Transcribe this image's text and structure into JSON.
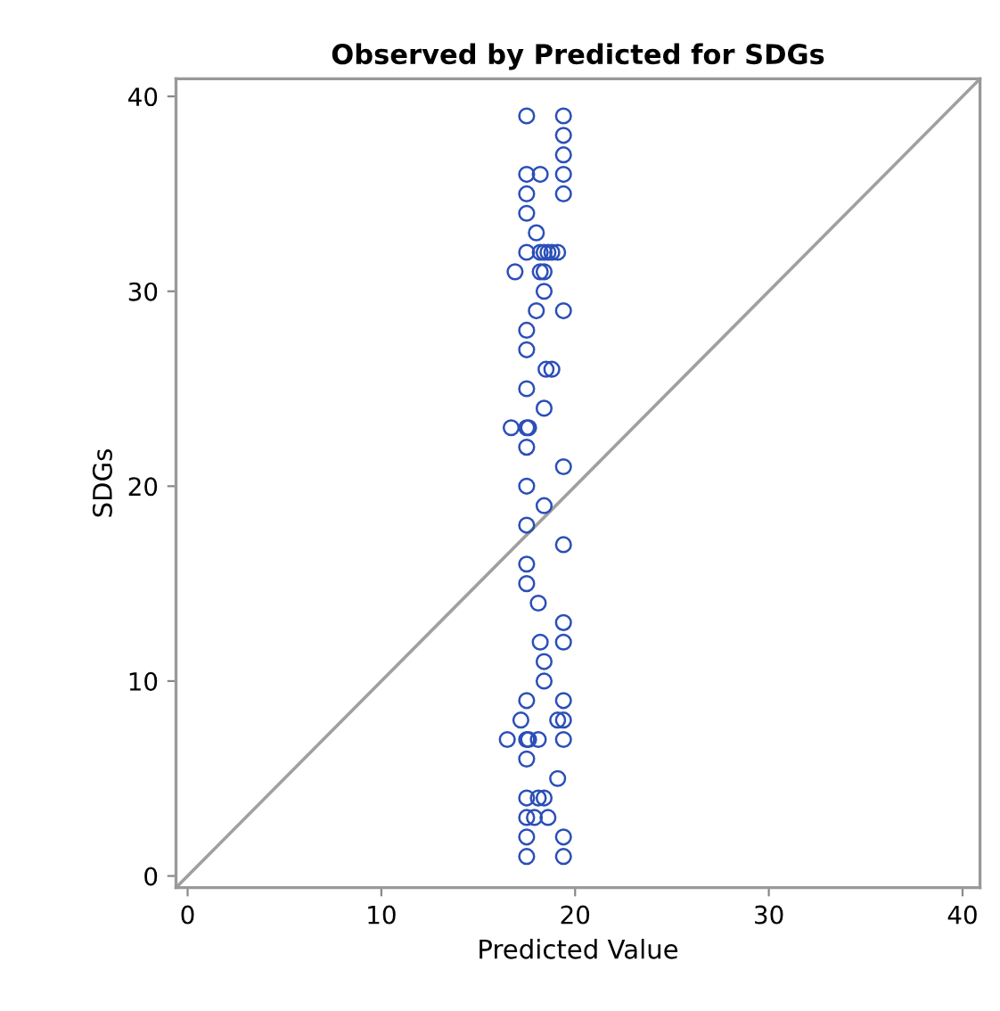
{
  "chart_data": {
    "type": "scatter",
    "title": "Observed by Predicted for SDGs",
    "xlabel": "Predicted Value",
    "ylabel": "SDGs",
    "xlim": [
      -0.6,
      40.9
    ],
    "ylim": [
      -0.6,
      40.9
    ],
    "xticks": [
      0,
      10,
      20,
      30,
      40
    ],
    "yticks": [
      0,
      10,
      20,
      30,
      40
    ],
    "grid": false,
    "series": [
      {
        "marker": "circle",
        "color": "#2b4fb8",
        "x": [
          17.5,
          19.4,
          19.4,
          19.4,
          17.5,
          18.2,
          19.4,
          17.5,
          19.4,
          17.5,
          18.0,
          17.5,
          18.2,
          18.4,
          18.6,
          18.8,
          19.1,
          16.9,
          18.2,
          18.4,
          18.4,
          18.0,
          19.4,
          17.5,
          17.5,
          18.5,
          18.8,
          17.5,
          18.4,
          16.7,
          17.5,
          17.6,
          17.5,
          19.4,
          17.5,
          18.4,
          17.5,
          19.4,
          17.5,
          17.5,
          18.1,
          19.4,
          18.2,
          19.4,
          18.4,
          18.4,
          17.5,
          19.4,
          17.2,
          19.1,
          19.4,
          16.5,
          17.5,
          17.6,
          18.1,
          19.4,
          17.5,
          19.1,
          17.5,
          18.1,
          18.4,
          17.5,
          17.9,
          18.6,
          17.5,
          19.4,
          17.5,
          19.4
        ],
        "values": [
          39,
          39,
          38,
          37,
          36,
          36,
          36,
          35,
          35,
          34,
          33,
          32,
          32,
          32,
          32,
          32,
          32,
          31,
          31,
          31,
          30,
          29,
          29,
          28,
          27,
          26,
          26,
          25,
          24,
          23,
          23,
          23,
          22,
          21,
          20,
          19,
          18,
          17,
          16,
          15,
          14,
          13,
          12,
          12,
          11,
          10,
          9,
          9,
          8,
          8,
          8,
          7,
          7,
          7,
          7,
          7,
          6,
          5,
          4,
          4,
          4,
          3,
          3,
          3,
          2,
          2,
          1,
          1
        ]
      },
      {
        "type": "line",
        "color": "#a0a0a0",
        "x": [
          -0.6,
          40.9
        ],
        "values": [
          -0.6,
          40.9
        ]
      }
    ]
  }
}
